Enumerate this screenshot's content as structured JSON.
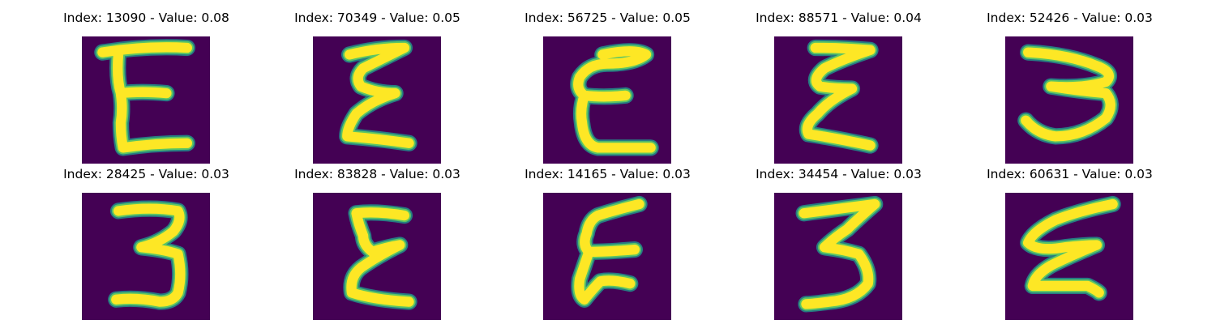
{
  "colors": {
    "background": "#440154",
    "stroke_core": "#fde725",
    "stroke_edge": "#21918c",
    "stroke_mid": "#5ec962"
  },
  "panels": [
    {
      "title": "Index: 13090 - Value: 0.08",
      "index": 13090,
      "value": 0.08,
      "glyph": "E"
    },
    {
      "title": "Index: 70349 - Value: 0.05",
      "index": 70349,
      "value": 0.05,
      "glyph": "E"
    },
    {
      "title": "Index: 56725 - Value: 0.05",
      "index": 56725,
      "value": 0.05,
      "glyph": "E"
    },
    {
      "title": "Index: 88571 - Value: 0.04",
      "index": 88571,
      "value": 0.04,
      "glyph": "E"
    },
    {
      "title": "Index: 52426 - Value: 0.03",
      "index": 52426,
      "value": 0.03,
      "glyph": "3"
    },
    {
      "title": "Index: 28425 - Value: 0.03",
      "index": 28425,
      "value": 0.03,
      "glyph": "3"
    },
    {
      "title": "Index: 83828 - Value: 0.03",
      "index": 83828,
      "value": 0.03,
      "glyph": "E"
    },
    {
      "title": "Index: 14165 - Value: 0.03",
      "index": 14165,
      "value": 0.03,
      "glyph": "E"
    },
    {
      "title": "Index: 34454 - Value: 0.03",
      "index": 34454,
      "value": 0.03,
      "glyph": "3"
    },
    {
      "title": "Index: 60631 - Value: 0.03",
      "index": 60631,
      "value": 0.03,
      "glyph": "E"
    }
  ]
}
